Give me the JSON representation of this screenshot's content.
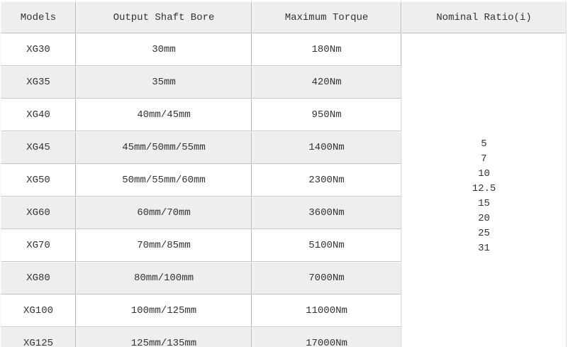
{
  "table": {
    "headers": [
      "Models",
      "Output Shaft Bore",
      "Maximum Torque",
      "Nominal Ratio(i)"
    ],
    "rows": [
      {
        "model": "XG30",
        "output_shaft_bore": "30mm",
        "maximum_torque": "180Nm"
      },
      {
        "model": "XG35",
        "output_shaft_bore": "35mm",
        "maximum_torque": "420Nm"
      },
      {
        "model": "XG40",
        "output_shaft_bore": "40mm/45mm",
        "maximum_torque": "950Nm"
      },
      {
        "model": "XG45",
        "output_shaft_bore": "45mm/50mm/55mm",
        "maximum_torque": "1400Nm"
      },
      {
        "model": "XG50",
        "output_shaft_bore": "50mm/55mm/60mm",
        "maximum_torque": "2300Nm"
      },
      {
        "model": "XG60",
        "output_shaft_bore": "60mm/70mm",
        "maximum_torque": "3600Nm"
      },
      {
        "model": "XG70",
        "output_shaft_bore": "70mm/85mm",
        "maximum_torque": "5100Nm"
      },
      {
        "model": "XG80",
        "output_shaft_bore": "80mm/100mm",
        "maximum_torque": "7000Nm"
      },
      {
        "model": "XG100",
        "output_shaft_bore": "100mm/125mm",
        "maximum_torque": "11000Nm"
      },
      {
        "model": "XG125",
        "output_shaft_bore": "125mm/135mm",
        "maximum_torque": "17000Nm"
      }
    ],
    "nominal_ratios": [
      "5",
      "7",
      "10",
      "12.5",
      "15",
      "20",
      "25",
      "31"
    ]
  },
  "colors": {
    "header_bg": "#eeeeee",
    "stripe_bg": "#eeeeee",
    "row_bg": "#ffffff",
    "border_dark": "#b9b9b9",
    "border_light": "#f8f8f8",
    "text": "#333333"
  }
}
